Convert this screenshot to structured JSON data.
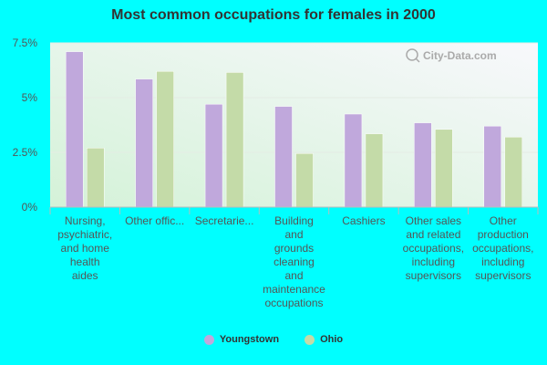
{
  "chart_data": {
    "type": "bar",
    "title": "Most common occupations for females in 2000",
    "categories": [
      [
        "Nursing,",
        "psychiatric,",
        "and home",
        "health",
        "aides"
      ],
      [
        "Other offic..."
      ],
      [
        "Secretarie..."
      ],
      [
        "Building",
        "and",
        "grounds",
        "cleaning",
        "and",
        "maintenance",
        "occupations"
      ],
      [
        "Cashiers"
      ],
      [
        "Other sales",
        "and related",
        "occupations,",
        "including",
        "supervisors"
      ],
      [
        "Other",
        "production",
        "occupations,",
        "including",
        "supervisors"
      ]
    ],
    "series": [
      {
        "name": "Youngstown",
        "color": "#c0a8dc",
        "values": [
          7.1,
          5.85,
          4.7,
          4.6,
          4.25,
          3.85,
          3.7
        ]
      },
      {
        "name": "Ohio",
        "color": "#c4dba8",
        "values": [
          2.7,
          6.2,
          6.15,
          2.45,
          3.35,
          3.55,
          3.2
        ]
      }
    ],
    "ylim": [
      0,
      7.5
    ],
    "yticks": [
      0,
      2.5,
      5,
      7.5
    ],
    "ytick_labels": [
      "0%",
      "2.5%",
      "5%",
      "7.5%"
    ],
    "legend_position": "bottom-center",
    "watermark": "City-Data.com"
  }
}
